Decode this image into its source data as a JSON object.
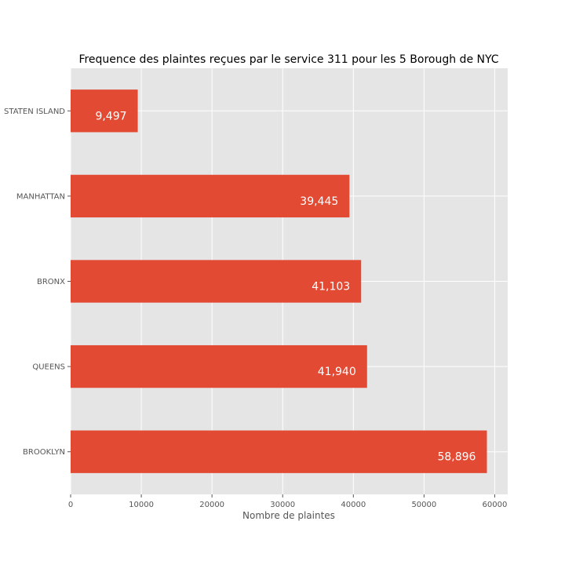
{
  "chart_data": {
    "type": "bar",
    "orientation": "horizontal",
    "title": "Frequence des plaintes reçues par le service 311 pour les 5 Borough de NYC",
    "xlabel": "Nombre de plaintes",
    "ylabel": "",
    "categories": [
      "STATEN ISLAND",
      "MANHATTAN",
      "BRONX",
      "QUEENS",
      "BROOKLYN"
    ],
    "values": [
      9497,
      39445,
      41103,
      41940,
      58896
    ],
    "data_labels": [
      "9,497",
      "39,445",
      "41,103",
      "41,940",
      "58,896"
    ],
    "xlim": [
      0,
      61840
    ],
    "xticks": [
      0,
      10000,
      20000,
      30000,
      40000,
      50000,
      60000
    ],
    "xtick_labels": [
      "0",
      "10000",
      "20000",
      "30000",
      "40000",
      "50000",
      "60000"
    ],
    "grid": true,
    "style": "ggplot",
    "colors": {
      "bar": "#E24A33",
      "plot_background": "#E5E5E5",
      "grid": "#FFFFFF",
      "data_label": "#FFFFFF"
    }
  }
}
